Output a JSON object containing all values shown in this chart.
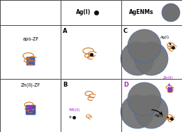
{
  "grid_color": "#444444",
  "white": "#ffffff",
  "orange": "#d4711a",
  "blue_ribbon": "#2244aa",
  "blue_light": "#6688cc",
  "dark_gray": "#5a5a5a",
  "np_color": "#707070",
  "np_edge": "#4466aa",
  "black": "#000000",
  "purple": "#aa22cc",
  "small_dot": "#111111",
  "col_splits": [
    0,
    87,
    174,
    261
  ],
  "row_splits": [
    0,
    36,
    113,
    189
  ],
  "header_fontsize": 5.5,
  "label_fontsize": 4.8,
  "letter_fontsize": 6.0,
  "ann_fontsize": 4.0
}
